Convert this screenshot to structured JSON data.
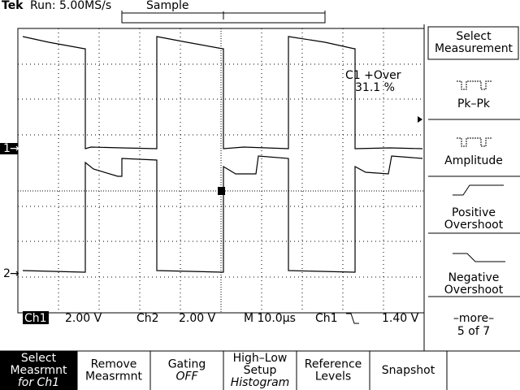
{
  "header": {
    "brand": "Tek",
    "acquisition": "Run: 5.00MS/s",
    "mode": "Sample"
  },
  "readout": {
    "label": "C1 +Over",
    "value": "31.1 %"
  },
  "channel_markers": [
    "1",
    "2"
  ],
  "status": {
    "ch1": "Ch1",
    "ch1_scale": "2.00 V",
    "ch2": "Ch2",
    "ch2_scale": "2.00 V",
    "timebase": "M 10.0µs",
    "trigger_source": "Ch1",
    "trigger_level": "1.40 V"
  },
  "side_menu": {
    "title": "Select Measurement",
    "items": [
      "Pk–Pk",
      "Amplitude",
      "Positive Overshoot",
      "Negative Overshoot"
    ],
    "more": "–more–",
    "page": "5 of 7"
  },
  "bottom_menu": [
    {
      "label": "Select Measrmnt",
      "sub": "for Ch1"
    },
    {
      "label": "Remove Measrmnt"
    },
    {
      "label": "Gating",
      "sub": "OFF"
    },
    {
      "label": "High–Low Setup",
      "sub": "Histogram"
    },
    {
      "label": "Reference Levels"
    },
    {
      "label": "Snapshot"
    }
  ]
}
